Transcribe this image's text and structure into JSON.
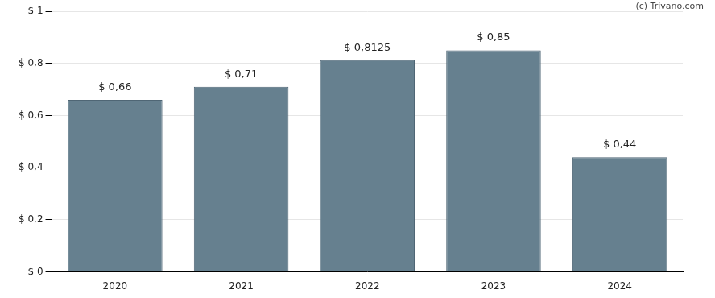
{
  "chart_data": {
    "type": "bar",
    "annotations": [
      "(c) Trivano.com"
    ],
    "categories": [
      "2020",
      "2021",
      "2022",
      "2023",
      "2024"
    ],
    "values": [
      0.66,
      0.71,
      0.8125,
      0.85,
      0.44
    ],
    "value_labels": [
      "$ 0,66",
      "$ 0,71",
      "$ 0,8125",
      "$ 0,85",
      "$ 0,44"
    ],
    "data_labels": true,
    "color": "#66808f",
    "ylim": [
      0,
      1
    ],
    "yticks": [
      {
        "value": 0,
        "label": "$ 0"
      },
      {
        "value": 0.2,
        "label": "$ 0,2"
      },
      {
        "value": 0.4,
        "label": "$ 0,4"
      },
      {
        "value": 0.6,
        "label": "$ 0,6"
      },
      {
        "value": 0.8,
        "label": "$ 0,8"
      },
      {
        "value": 1,
        "label": "$ 1"
      }
    ],
    "grid": true
  }
}
